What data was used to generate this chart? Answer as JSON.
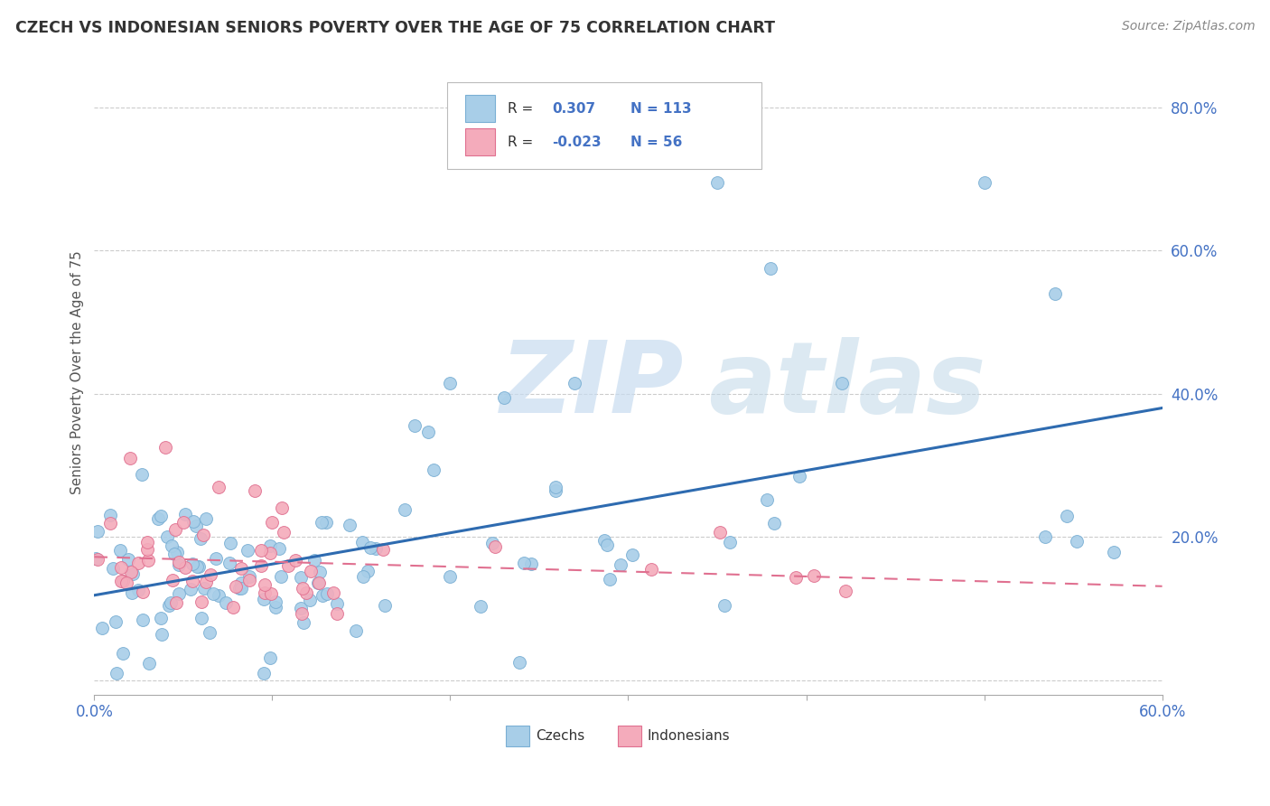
{
  "title": "CZECH VS INDONESIAN SENIORS POVERTY OVER THE AGE OF 75 CORRELATION CHART",
  "source": "Source: ZipAtlas.com",
  "ylabel": "Seniors Poverty Over the Age of 75",
  "xlim": [
    0.0,
    0.6
  ],
  "ylim": [
    -0.02,
    0.88
  ],
  "x_tick_positions": [
    0.0,
    0.1,
    0.2,
    0.3,
    0.4,
    0.5,
    0.6
  ],
  "x_tick_labels": [
    "0.0%",
    "",
    "",
    "",
    "",
    "",
    "60.0%"
  ],
  "y_tick_positions": [
    0.0,
    0.2,
    0.4,
    0.6,
    0.8
  ],
  "y_tick_labels": [
    "",
    "20.0%",
    "40.0%",
    "60.0%",
    "80.0%"
  ],
  "czech_color": "#A8CEE8",
  "indonesian_color": "#F4ABBB",
  "czech_edge": "#7AAFD4",
  "indonesian_edge": "#E07090",
  "trend_czech_color": "#2E6BB0",
  "trend_indonesian_color": "#E07090",
  "R_czech": 0.307,
  "N_czech": 113,
  "R_indonesian": -0.023,
  "N_indonesian": 56,
  "background_color": "#FFFFFF",
  "grid_color": "#CCCCCC",
  "title_color": "#333333",
  "source_color": "#888888",
  "tick_color": "#4472C4",
  "label_color": "#555555",
  "legend_text_color": "#333333",
  "legend_value_color": "#4472C4"
}
